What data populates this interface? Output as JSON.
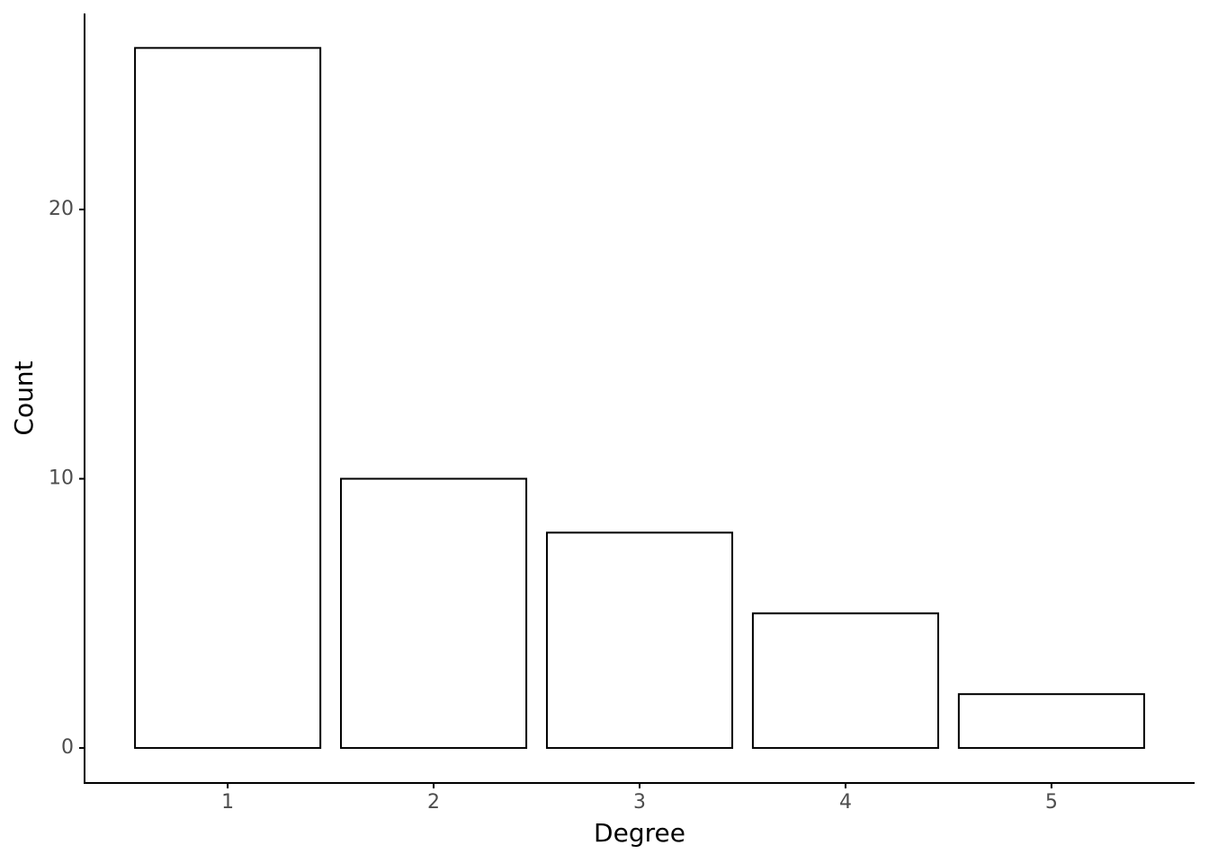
{
  "chart_data": {
    "type": "bar",
    "x_label": "Degree",
    "y_label": "Count",
    "x": [
      1,
      2,
      3,
      4,
      5
    ],
    "values": [
      26,
      10,
      8,
      5,
      2
    ],
    "color": "#ffffff",
    "edge_color": "#000000",
    "bar_width": 0.9,
    "xlim": [
      0.305,
      5.695
    ],
    "xticks": [
      1,
      2,
      3,
      4,
      5
    ],
    "ylim": [
      -1.3,
      27.28
    ],
    "yticks": [
      0,
      10,
      20
    ],
    "grid": false
  }
}
